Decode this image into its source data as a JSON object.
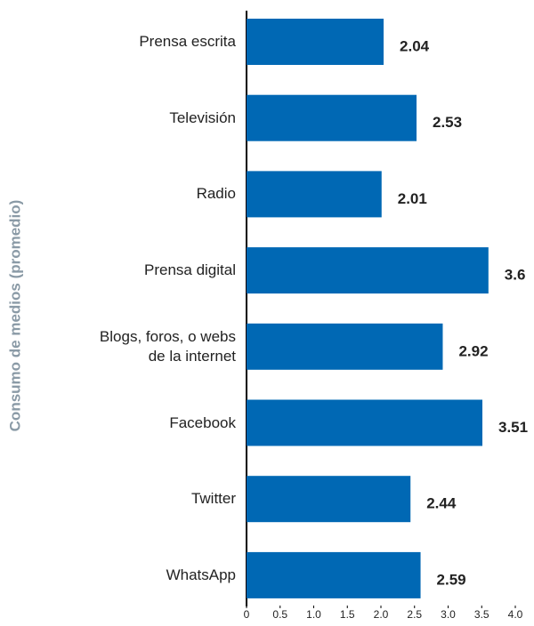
{
  "chart_data": {
    "type": "bar",
    "orientation": "horizontal",
    "ylabel": "Consumo de medios (promedio)",
    "categories": [
      "Prensa escrita",
      "Televisión",
      "Radio",
      "Prensa digital",
      "Blogs, foros, o webs de la internet",
      "Facebook",
      "Twitter",
      "WhatsApp"
    ],
    "values": [
      2.04,
      2.53,
      2.01,
      3.6,
      2.92,
      3.51,
      2.44,
      2.59
    ],
    "color": "#0068b4",
    "xlim": [
      0,
      4
    ],
    "xticks": [
      0,
      0.5,
      {
        "value": 1,
        "label": "1.0"
      },
      1.5,
      {
        "value": 2,
        "label": "2.0"
      },
      2.5,
      {
        "value": 3,
        "label": "3.0"
      },
      3.5,
      {
        "value": 4,
        "label": "4.0"
      }
    ],
    "grid": false
  }
}
